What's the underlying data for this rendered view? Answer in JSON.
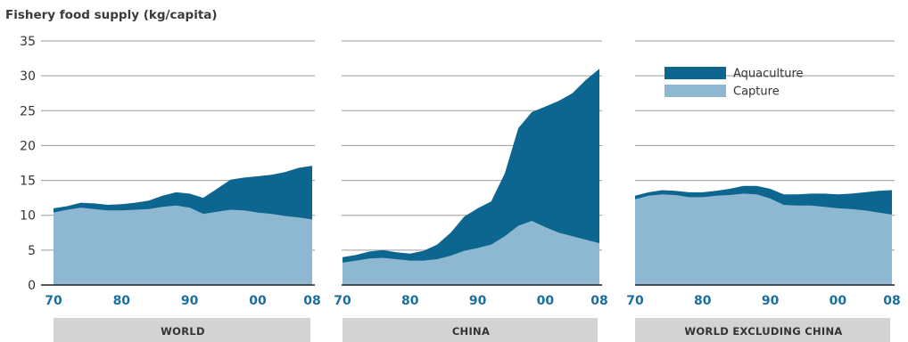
{
  "chart_data": {
    "type": "area",
    "ylabel": "Fishery food supply (kg/capita)",
    "ylim": [
      0,
      35
    ],
    "yticks": [
      "0",
      "5",
      "10",
      "15",
      "20",
      "25",
      "30",
      "35"
    ],
    "xtick_labels": [
      "70",
      "80",
      "90",
      "00",
      "08"
    ],
    "xlim": [
      1970,
      2008
    ],
    "legend": {
      "placement": "top-right of WORLD EXCLUDING CHINA panel",
      "entries": [
        {
          "name": "Aquaculture",
          "color": "#0d6690"
        },
        {
          "name": "Capture",
          "color": "#8eb8d2"
        }
      ]
    },
    "colors": {
      "aquaculture": "#0d6690",
      "capture": "#8eb8d2",
      "grid": "#9a9a9a",
      "panel_band": "#d3d3d3",
      "tick": "#1b6fa0"
    },
    "panels": [
      {
        "title": "WORLD",
        "years": [
          1970,
          1972,
          1974,
          1976,
          1978,
          1980,
          1982,
          1984,
          1986,
          1988,
          1990,
          1992,
          1994,
          1996,
          1998,
          2000,
          2002,
          2004,
          2006,
          2008
        ],
        "total": [
          11.0,
          11.3,
          11.8,
          11.7,
          11.5,
          11.6,
          11.8,
          12.1,
          12.8,
          13.3,
          13.1,
          12.5,
          13.8,
          15.1,
          15.4,
          15.6,
          15.8,
          16.2,
          16.8,
          17.1
        ],
        "capture": [
          10.4,
          10.8,
          11.1,
          10.9,
          10.7,
          10.7,
          10.8,
          10.9,
          11.2,
          11.4,
          11.1,
          10.2,
          10.5,
          10.8,
          10.7,
          10.4,
          10.2,
          9.9,
          9.7,
          9.4
        ]
      },
      {
        "title": "CHINA",
        "years": [
          1970,
          1972,
          1974,
          1976,
          1978,
          1980,
          1982,
          1984,
          1986,
          1988,
          1990,
          1992,
          1994,
          1996,
          1998,
          2000,
          2002,
          2004,
          2006,
          2008
        ],
        "total": [
          4.0,
          4.3,
          4.8,
          5.0,
          4.7,
          4.5,
          4.9,
          5.8,
          7.5,
          9.8,
          11.0,
          12.0,
          16.0,
          22.5,
          24.8,
          25.6,
          26.4,
          27.5,
          29.4,
          31.0
        ],
        "capture": [
          3.2,
          3.5,
          3.8,
          3.9,
          3.7,
          3.5,
          3.5,
          3.7,
          4.2,
          4.9,
          5.3,
          5.8,
          7.0,
          8.5,
          9.2,
          8.3,
          7.5,
          7.0,
          6.5,
          6.0
        ]
      },
      {
        "title": "WORLD EXCLUDING CHINA",
        "years": [
          1970,
          1972,
          1974,
          1976,
          1978,
          1980,
          1982,
          1984,
          1986,
          1988,
          1990,
          1992,
          1994,
          1996,
          1998,
          2000,
          2002,
          2004,
          2006,
          2008
        ],
        "total": [
          12.8,
          13.3,
          13.6,
          13.5,
          13.3,
          13.3,
          13.5,
          13.8,
          14.2,
          14.2,
          13.8,
          13.0,
          13.0,
          13.1,
          13.1,
          13.0,
          13.1,
          13.3,
          13.5,
          13.6
        ],
        "capture": [
          12.3,
          12.8,
          13.0,
          12.9,
          12.6,
          12.6,
          12.8,
          12.9,
          13.1,
          13.0,
          12.4,
          11.5,
          11.4,
          11.4,
          11.2,
          11.0,
          10.9,
          10.7,
          10.4,
          10.1
        ]
      }
    ]
  }
}
